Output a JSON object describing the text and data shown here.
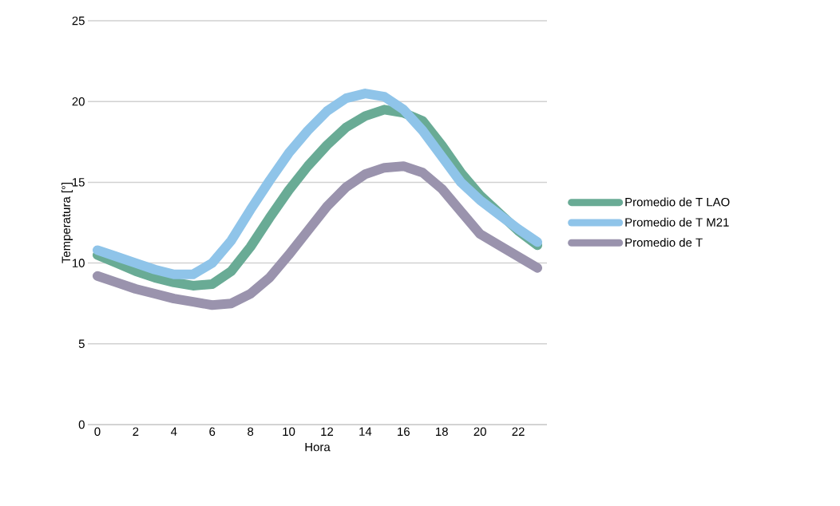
{
  "chart_data": {
    "type": "line",
    "xlabel": "Hora",
    "ylabel": "Temperatura [°]",
    "x": [
      0,
      1,
      2,
      3,
      4,
      5,
      6,
      7,
      8,
      9,
      10,
      11,
      12,
      13,
      14,
      15,
      16,
      17,
      18,
      19,
      20,
      21,
      22,
      23
    ],
    "series": [
      {
        "name": "Promedio de T LAO",
        "color": "#69ab95",
        "values": [
          10.5,
          10.0,
          9.5,
          9.1,
          8.8,
          8.6,
          8.7,
          9.5,
          11.0,
          12.8,
          14.5,
          16.0,
          17.3,
          18.4,
          19.1,
          19.5,
          19.3,
          18.8,
          17.3,
          15.6,
          14.2,
          13.1,
          12.0,
          11.1
        ]
      },
      {
        "name": "Promedio de T M21",
        "color": "#8fc4e9",
        "values": [
          10.8,
          10.4,
          10.0,
          9.6,
          9.3,
          9.3,
          10.0,
          11.4,
          13.3,
          15.1,
          16.8,
          18.2,
          19.4,
          20.2,
          20.5,
          20.3,
          19.5,
          18.2,
          16.6,
          15.0,
          13.9,
          13.0,
          12.1,
          11.3
        ]
      },
      {
        "name": "Promedio de T",
        "color": "#9a93ad",
        "values": [
          9.2,
          8.8,
          8.4,
          8.1,
          7.8,
          7.6,
          7.4,
          7.5,
          8.1,
          9.1,
          10.5,
          12.0,
          13.5,
          14.7,
          15.5,
          15.9,
          16.0,
          15.6,
          14.6,
          13.2,
          11.8,
          11.1,
          10.4,
          9.7
        ]
      }
    ],
    "xlim": [
      -0.5,
      23.5
    ],
    "xticks": [
      0,
      2,
      4,
      6,
      8,
      10,
      12,
      14,
      16,
      18,
      20,
      22
    ],
    "ylim": [
      0,
      25
    ],
    "yticks": [
      0,
      5,
      10,
      15,
      20,
      25
    ],
    "grid": "y",
    "legend": "right",
    "marker": "none",
    "line_style": "solid"
  }
}
